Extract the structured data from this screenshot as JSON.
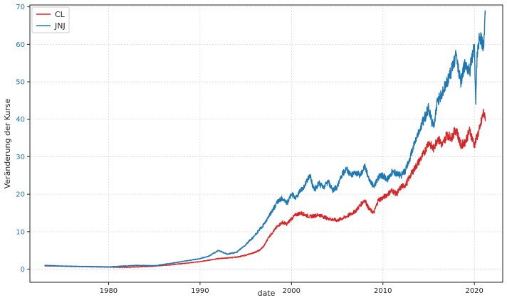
{
  "chart_data": {
    "type": "line",
    "title": "",
    "xlabel": "date",
    "ylabel": "Veränderung der Kurse",
    "xlim": [
      1971.4,
      2023.1
    ],
    "ylim": [
      -3.5,
      70.5
    ],
    "xticks": [
      1980,
      1990,
      2000,
      2010,
      2020
    ],
    "yticks": [
      0,
      10,
      20,
      30,
      40,
      50,
      60,
      70
    ],
    "grid": true,
    "legend": {
      "placement": "top-left"
    },
    "series": [
      {
        "name": "CL",
        "color": "#d62728",
        "x": [
          1973.0,
          1975.0,
          1977.0,
          1980.0,
          1982.0,
          1985.0,
          1987.0,
          1990.0,
          1992.0,
          1994.0,
          1995.0,
          1996.0,
          1996.5,
          1997.0,
          1997.5,
          1998.0,
          1998.5,
          1999.0,
          1999.5,
          2000.0,
          2000.5,
          2001.0,
          2002.0,
          2003.0,
          2004.0,
          2005.0,
          2006.0,
          2007.0,
          2007.5,
          2008.0,
          2008.5,
          2009.0,
          2009.5,
          2010.0,
          2010.5,
          2011.0,
          2011.5,
          2012.0,
          2012.5,
          2013.0,
          2013.5,
          2014.0,
          2014.5,
          2015.0,
          2015.5,
          2016.0,
          2016.5,
          2017.0,
          2017.5,
          2018.0,
          2018.5,
          2019.0,
          2019.5,
          2020.0,
          2020.3,
          2020.6,
          2021.0,
          2021.2
        ],
        "y": [
          0.9,
          0.8,
          0.7,
          0.55,
          0.5,
          0.8,
          1.2,
          2.0,
          2.8,
          3.2,
          3.7,
          4.5,
          5.0,
          6.2,
          8.5,
          10.0,
          11.5,
          12.5,
          12.0,
          13.5,
          14.5,
          15.0,
          14.0,
          14.5,
          13.5,
          13.0,
          14.0,
          15.5,
          17.0,
          18.5,
          16.0,
          15.0,
          18.5,
          19.0,
          20.0,
          21.0,
          20.0,
          22.0,
          22.5,
          25.0,
          27.0,
          29.0,
          31.0,
          34.0,
          32.0,
          35.0,
          33.0,
          36.0,
          35.0,
          37.5,
          33.0,
          34.0,
          37.0,
          33.0,
          35.5,
          37.5,
          42.0,
          39.5
        ]
      },
      {
        "name": "JNJ",
        "color": "#1f77b4",
        "x": [
          1973.0,
          1975.0,
          1977.0,
          1980.0,
          1983.0,
          1985.0,
          1987.0,
          1988.0,
          1990.0,
          1991.0,
          1992.0,
          1993.0,
          1994.0,
          1995.0,
          1996.0,
          1997.0,
          1997.5,
          1998.0,
          1998.5,
          1999.0,
          1999.5,
          2000.0,
          2000.5,
          2001.0,
          2001.5,
          2002.0,
          2002.5,
          2003.0,
          2003.5,
          2004.0,
          2004.5,
          2005.0,
          2005.5,
          2006.0,
          2006.5,
          2007.0,
          2007.5,
          2008.0,
          2008.5,
          2009.0,
          2009.5,
          2010.0,
          2010.5,
          2011.0,
          2011.5,
          2012.0,
          2012.5,
          2013.0,
          2013.5,
          2014.0,
          2014.5,
          2015.0,
          2015.5,
          2016.0,
          2016.5,
          2017.0,
          2017.5,
          2018.0,
          2018.5,
          2019.0,
          2019.5,
          2020.0,
          2020.15,
          2020.3,
          2020.6,
          2021.0,
          2021.2
        ],
        "y": [
          1.0,
          0.8,
          0.7,
          0.6,
          1.0,
          0.9,
          1.6,
          2.0,
          2.8,
          3.5,
          5.0,
          4.0,
          4.5,
          6.5,
          9.0,
          12.0,
          14.0,
          16.0,
          18.0,
          19.0,
          17.5,
          20.0,
          19.0,
          21.0,
          22.5,
          25.0,
          21.0,
          23.0,
          21.5,
          23.5,
          21.0,
          22.0,
          25.0,
          27.0,
          25.0,
          26.0,
          25.0,
          27.5,
          24.0,
          22.0,
          24.5,
          25.0,
          24.0,
          26.0,
          25.5,
          25.0,
          26.5,
          30.0,
          34.0,
          37.0,
          40.0,
          43.0,
          38.0,
          45.0,
          47.0,
          50.0,
          53.0,
          57.0,
          50.0,
          55.0,
          53.0,
          60.0,
          44.0,
          58.0,
          62.0,
          60.0,
          68.0
        ]
      }
    ]
  }
}
